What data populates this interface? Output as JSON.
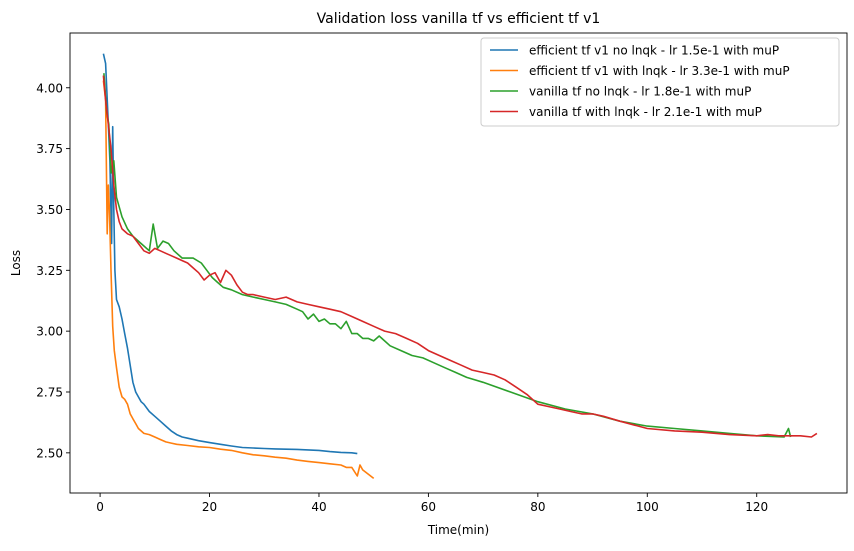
{
  "chart_data": {
    "type": "line",
    "title": "Validation loss vanilla tf vs efficient tf v1",
    "xlabel": "Time(min)",
    "ylabel": "Loss",
    "xlim": [
      -5.5,
      136.5
    ],
    "ylim": [
      2.335,
      4.225
    ],
    "xticks": [
      0,
      20,
      40,
      60,
      80,
      100,
      120
    ],
    "xtick_labels": [
      "0",
      "20",
      "40",
      "60",
      "80",
      "100",
      "120"
    ],
    "yticks": [
      2.5,
      2.75,
      3.0,
      3.25,
      3.5,
      3.75,
      4.0
    ],
    "ytick_labels": [
      "2.50",
      "2.75",
      "3.00",
      "3.25",
      "3.50",
      "3.75",
      "4.00"
    ],
    "grid": false,
    "legend_position": "top-right",
    "series": [
      {
        "name": "efficient tf v1 no lnqk - lr 1.5e-1 with muP",
        "color": "#1f77b4",
        "x": [
          0.6,
          1.0,
          1.4,
          1.8,
          2.1,
          2.3,
          2.5,
          2.7,
          3.0,
          3.5,
          4.0,
          4.5,
          5.0,
          5.5,
          6.0,
          6.5,
          7.0,
          7.5,
          8.0,
          9.0,
          10.0,
          11.0,
          12.0,
          13.0,
          14.0,
          15.0,
          16.0,
          18.0,
          20.0,
          22.0,
          24.0,
          26.0,
          28.0,
          30.0,
          32.0,
          34.0,
          36.0,
          38.0,
          40.0,
          42.0,
          44.0,
          46.0,
          47.0
        ],
        "y": [
          4.14,
          4.1,
          3.9,
          3.7,
          3.36,
          3.84,
          3.5,
          3.25,
          3.13,
          3.1,
          3.05,
          2.99,
          2.93,
          2.86,
          2.79,
          2.75,
          2.73,
          2.71,
          2.7,
          2.67,
          2.65,
          2.63,
          2.61,
          2.59,
          2.575,
          2.565,
          2.56,
          2.55,
          2.542,
          2.535,
          2.528,
          2.522,
          2.52,
          2.518,
          2.516,
          2.515,
          2.514,
          2.512,
          2.51,
          2.505,
          2.502,
          2.5,
          2.497
        ]
      },
      {
        "name": "efficient tf v1 with lnqk - lr 3.3e-1 with muP",
        "color": "#ff7f0e",
        "x": [
          0.6,
          1.0,
          1.3,
          1.5,
          1.7,
          2.0,
          2.3,
          2.6,
          3.0,
          3.5,
          4.0,
          4.5,
          5.0,
          5.5,
          6.0,
          6.5,
          7.0,
          7.5,
          8.0,
          9.0,
          10.0,
          11.0,
          12.0,
          13.0,
          14.0,
          16.0,
          18.0,
          20.0,
          22.0,
          24.0,
          26.0,
          28.0,
          30.0,
          32.0,
          34.0,
          36.0,
          38.0,
          40.0,
          42.0,
          44.0,
          45.0,
          46.0,
          47.0,
          47.5,
          48.0,
          50.0
        ],
        "y": [
          4.03,
          3.95,
          3.4,
          3.6,
          3.5,
          3.25,
          3.02,
          2.92,
          2.85,
          2.77,
          2.73,
          2.72,
          2.7,
          2.66,
          2.64,
          2.62,
          2.6,
          2.59,
          2.58,
          2.575,
          2.565,
          2.555,
          2.545,
          2.54,
          2.535,
          2.53,
          2.525,
          2.522,
          2.515,
          2.51,
          2.5,
          2.492,
          2.488,
          2.482,
          2.478,
          2.47,
          2.465,
          2.46,
          2.455,
          2.45,
          2.44,
          2.44,
          2.405,
          2.45,
          2.43,
          2.395
        ]
      },
      {
        "name": "vanilla tf no lnqk - lr 1.8e-1 with muP",
        "color": "#2ca02c",
        "x": [
          0.7,
          1.2,
          1.6,
          2.0,
          2.5,
          3.0,
          4.0,
          5.0,
          6.0,
          7.0,
          8.0,
          9.0,
          9.7,
          10.5,
          11.5,
          12.5,
          13.5,
          15.0,
          17.0,
          18.5,
          19.5,
          20.5,
          21.5,
          22.5,
          24.0,
          26.0,
          28.0,
          30.0,
          32.0,
          34.0,
          36.0,
          37.0,
          38.0,
          39.0,
          40.0,
          41.0,
          42.0,
          43.0,
          44.0,
          45.0,
          46.0,
          47.0,
          48.0,
          49.0,
          50.0,
          51.0,
          53.0,
          55.0,
          57.0,
          59.0,
          61.0,
          63.0,
          65.0,
          67.0,
          70.0,
          75.0,
          80.0,
          85.0,
          90.0,
          95.0,
          100.0,
          105.0,
          110.0,
          115.0,
          120.0,
          125.0,
          125.8,
          126.2
        ],
        "y": [
          4.06,
          3.9,
          3.85,
          3.65,
          3.7,
          3.55,
          3.47,
          3.42,
          3.39,
          3.37,
          3.35,
          3.33,
          3.44,
          3.34,
          3.37,
          3.36,
          3.33,
          3.3,
          3.3,
          3.28,
          3.25,
          3.22,
          3.2,
          3.18,
          3.17,
          3.15,
          3.14,
          3.13,
          3.12,
          3.11,
          3.09,
          3.08,
          3.05,
          3.07,
          3.04,
          3.05,
          3.03,
          3.03,
          3.01,
          3.04,
          2.99,
          2.99,
          2.97,
          2.97,
          2.96,
          2.98,
          2.94,
          2.92,
          2.9,
          2.89,
          2.87,
          2.85,
          2.83,
          2.81,
          2.79,
          2.75,
          2.71,
          2.68,
          2.66,
          2.63,
          2.61,
          2.6,
          2.59,
          2.58,
          2.57,
          2.565,
          2.6,
          2.565
        ]
      },
      {
        "name": "vanilla tf with lnqk - lr 2.1e-1 with muP",
        "color": "#d62728",
        "x": [
          0.6,
          1.0,
          1.5,
          2.0,
          2.5,
          3.0,
          3.5,
          4.0,
          5.0,
          6.0,
          7.0,
          8.0,
          9.0,
          10.0,
          11.0,
          12.0,
          13.0,
          14.0,
          15.0,
          16.0,
          17.0,
          18.0,
          19.0,
          20.0,
          21.0,
          22.0,
          23.0,
          24.0,
          25.0,
          26.0,
          27.0,
          28.0,
          30.0,
          32.0,
          34.0,
          36.0,
          38.0,
          40.0,
          42.0,
          44.0,
          46.0,
          48.0,
          50.0,
          52.0,
          54.0,
          56.0,
          58.0,
          60.0,
          62.0,
          64.0,
          66.0,
          68.0,
          70.0,
          72.0,
          74.0,
          76.0,
          78.0,
          80.0,
          82.0,
          84.0,
          86.0,
          88.0,
          90.0,
          92.0,
          95.0,
          100.0,
          105.0,
          110.0,
          115.0,
          120.0,
          122.0,
          124.0,
          126.0,
          128.0,
          130.0,
          131.0
        ],
        "y": [
          4.05,
          3.95,
          3.85,
          3.75,
          3.6,
          3.5,
          3.45,
          3.42,
          3.4,
          3.39,
          3.36,
          3.33,
          3.32,
          3.34,
          3.33,
          3.32,
          3.31,
          3.3,
          3.29,
          3.28,
          3.26,
          3.24,
          3.21,
          3.23,
          3.24,
          3.2,
          3.25,
          3.23,
          3.19,
          3.16,
          3.15,
          3.15,
          3.14,
          3.13,
          3.14,
          3.12,
          3.11,
          3.1,
          3.09,
          3.08,
          3.06,
          3.04,
          3.02,
          3.0,
          2.99,
          2.97,
          2.95,
          2.92,
          2.9,
          2.88,
          2.86,
          2.84,
          2.83,
          2.82,
          2.8,
          2.77,
          2.74,
          2.7,
          2.69,
          2.68,
          2.67,
          2.66,
          2.66,
          2.65,
          2.63,
          2.6,
          2.59,
          2.585,
          2.575,
          2.57,
          2.575,
          2.57,
          2.57,
          2.57,
          2.565,
          2.58
        ]
      }
    ]
  }
}
